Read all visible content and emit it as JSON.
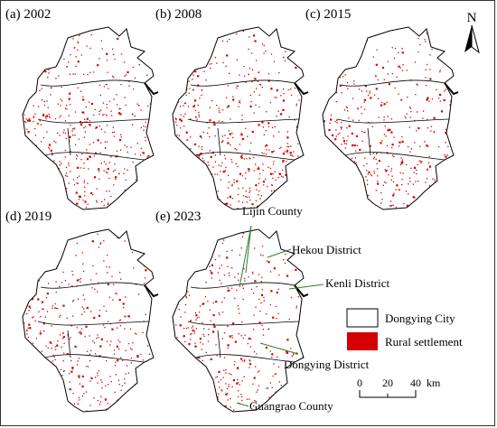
{
  "north_arrow": {
    "label": "N"
  },
  "panels": [
    {
      "label": "(a)  2002",
      "density": 1.0
    },
    {
      "label": "(b)  2008",
      "density": 1.05
    },
    {
      "label": "(c)  2015",
      "density": 0.85
    },
    {
      "label": "(d)  2019",
      "density": 0.8
    },
    {
      "label": "(e)  2023",
      "density": 0.8
    }
  ],
  "callouts": {
    "lijin": "Lijin County",
    "hekou": "Hekou District",
    "kenli": "Kenli District",
    "dongying": "Dongying District",
    "guangrao": "Guangrao County"
  },
  "legend": {
    "boundary_label": "Dongying City",
    "settlement_label": "Rural settlement",
    "settlement_color": "#d40000",
    "boundary_color": "#000000"
  },
  "scale_bar": {
    "ticks": [
      "0",
      "20",
      "40"
    ],
    "unit": "km"
  },
  "colors": {
    "settlement": "#d40000",
    "boundary": "#000000",
    "callout_line": "#2e7d32"
  }
}
